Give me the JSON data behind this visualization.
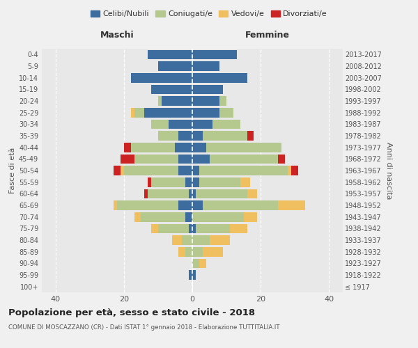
{
  "age_groups": [
    "100+",
    "95-99",
    "90-94",
    "85-89",
    "80-84",
    "75-79",
    "70-74",
    "65-69",
    "60-64",
    "55-59",
    "50-54",
    "45-49",
    "40-44",
    "35-39",
    "30-34",
    "25-29",
    "20-24",
    "15-19",
    "10-14",
    "5-9",
    "0-4"
  ],
  "birth_years": [
    "≤ 1917",
    "1918-1922",
    "1923-1927",
    "1928-1932",
    "1933-1937",
    "1938-1942",
    "1943-1947",
    "1948-1952",
    "1953-1957",
    "1958-1962",
    "1963-1967",
    "1968-1972",
    "1973-1977",
    "1978-1982",
    "1983-1987",
    "1988-1992",
    "1993-1997",
    "1998-2002",
    "2003-2007",
    "2008-2012",
    "2013-2017"
  ],
  "males": {
    "celibi": [
      0,
      1,
      0,
      0,
      0,
      1,
      2,
      4,
      1,
      2,
      4,
      4,
      5,
      4,
      7,
      14,
      9,
      12,
      18,
      10,
      13
    ],
    "coniugati": [
      0,
      0,
      0,
      2,
      3,
      9,
      13,
      18,
      12,
      10,
      16,
      13,
      13,
      6,
      5,
      3,
      1,
      0,
      0,
      0,
      0
    ],
    "vedovi": [
      0,
      0,
      0,
      2,
      3,
      2,
      2,
      1,
      0,
      0,
      1,
      0,
      0,
      0,
      0,
      1,
      0,
      0,
      0,
      0,
      0
    ],
    "divorziati": [
      0,
      0,
      0,
      0,
      0,
      0,
      0,
      0,
      1,
      1,
      2,
      4,
      2,
      0,
      0,
      0,
      0,
      0,
      0,
      0,
      0
    ]
  },
  "females": {
    "nubili": [
      0,
      1,
      0,
      0,
      0,
      1,
      0,
      3,
      1,
      2,
      2,
      5,
      4,
      3,
      6,
      8,
      8,
      9,
      16,
      8,
      13
    ],
    "coniugate": [
      0,
      0,
      2,
      3,
      5,
      10,
      15,
      22,
      15,
      12,
      26,
      20,
      22,
      13,
      8,
      4,
      2,
      0,
      0,
      0,
      0
    ],
    "vedove": [
      0,
      0,
      2,
      6,
      6,
      5,
      4,
      8,
      3,
      3,
      1,
      0,
      0,
      0,
      0,
      0,
      0,
      0,
      0,
      0,
      0
    ],
    "divorziate": [
      0,
      0,
      0,
      0,
      0,
      0,
      0,
      0,
      0,
      0,
      2,
      2,
      0,
      2,
      0,
      0,
      0,
      0,
      0,
      0,
      0
    ]
  },
  "colors": {
    "celibi": "#3d6d9e",
    "coniugati": "#b5c98e",
    "vedovi": "#f0c060",
    "divorziati": "#cc2222"
  },
  "xlim": 44,
  "title": "Popolazione per età, sesso e stato civile - 2018",
  "subtitle": "COMUNE DI MOSCAZZANO (CR) - Dati ISTAT 1° gennaio 2018 - Elaborazione TUTTITALIA.IT",
  "ylabel_left": "Fasce di età",
  "ylabel_right": "Anni di nascita",
  "xlabel_left": "Maschi",
  "xlabel_right": "Femmine",
  "bg_color": "#f0f0f0",
  "plot_bg": "#e8e8e8"
}
